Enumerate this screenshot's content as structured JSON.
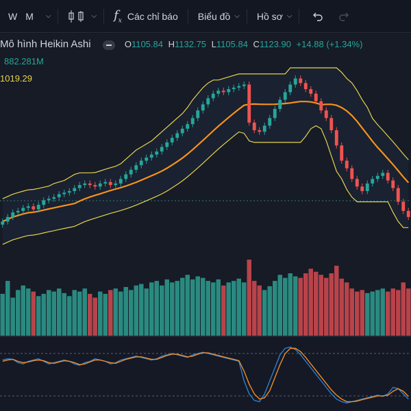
{
  "toolbar": {
    "interval_w": "W",
    "interval_m": "M",
    "indicators_label": "Các chỉ báo",
    "chart_menu_label": "Biểu đồ",
    "profile_menu_label": "Hồ sơ",
    "icons": [
      "chevron-down-icon",
      "candles-icon",
      "function-fx-icon",
      "undo-icon",
      "redo-icon"
    ]
  },
  "legend": {
    "series_name": "Mô hình Heikin Ashi",
    "o_key": "O",
    "o_val": "1105.84",
    "h_key": "H",
    "h_val": "1132.75",
    "l_key": "L",
    "l_val": "1105.84",
    "c_key": "C",
    "c_val": "1123.90",
    "change": "+14.88 (+1.34%)",
    "volume_value": "882.281M",
    "ma_value": "1019.29"
  },
  "colors": {
    "background": "#161b26",
    "up": "#26a69a",
    "down": "#ef5350",
    "ma_line": "#f7931a",
    "bands": "#e8d44d",
    "stoch_k": "#2f7fd1",
    "stoch_d": "#f28c28"
  },
  "chart_data": {
    "type": "candlestick",
    "heikin_ashi_close": [
      1010,
      1016,
      1022,
      1024,
      1028,
      1030,
      1026,
      1032,
      1038,
      1040,
      1042,
      1046,
      1048,
      1050,
      1054,
      1058,
      1060,
      1058,
      1056,
      1060,
      1062,
      1058,
      1060,
      1066,
      1072,
      1078,
      1084,
      1090,
      1094,
      1098,
      1102,
      1108,
      1114,
      1120,
      1126,
      1132,
      1138,
      1146,
      1156,
      1164,
      1172,
      1178,
      1182,
      1180,
      1184,
      1186,
      1188,
      1190,
      1140,
      1130,
      1128,
      1136,
      1146,
      1158,
      1170,
      1180,
      1190,
      1198,
      1192,
      1184,
      1178,
      1168,
      1156,
      1146,
      1130,
      1110,
      1090,
      1080,
      1066,
      1056,
      1050,
      1060,
      1066,
      1070,
      1074,
      1064,
      1054,
      1036,
      1024,
      1016
    ],
    "volume_relative": [
      0.55,
      0.72,
      0.5,
      0.6,
      0.66,
      0.62,
      0.58,
      0.52,
      0.55,
      0.6,
      0.58,
      0.62,
      0.56,
      0.52,
      0.6,
      0.58,
      0.62,
      0.55,
      0.5,
      0.58,
      0.55,
      0.6,
      0.62,
      0.58,
      0.64,
      0.6,
      0.66,
      0.68,
      0.62,
      0.7,
      0.72,
      0.66,
      0.74,
      0.7,
      0.72,
      0.76,
      0.8,
      0.74,
      0.78,
      0.76,
      0.72,
      0.7,
      0.74,
      0.66,
      0.7,
      0.72,
      0.75,
      0.7,
      1.0,
      0.72,
      0.66,
      0.6,
      0.65,
      0.72,
      0.8,
      0.76,
      0.82,
      0.78,
      0.76,
      0.82,
      0.88,
      0.84,
      0.8,
      0.76,
      0.82,
      0.92,
      0.75,
      0.7,
      0.62,
      0.58,
      0.6,
      0.56,
      0.58,
      0.6,
      0.62,
      0.58,
      0.62,
      0.6,
      0.7,
      0.62
    ],
    "stoch_k": [
      72,
      74,
      73,
      68,
      66,
      70,
      72,
      74,
      70,
      66,
      68,
      70,
      72,
      70,
      66,
      64,
      68,
      70,
      74,
      72,
      70,
      66,
      68,
      72,
      74,
      76,
      78,
      76,
      74,
      72,
      74,
      78,
      80,
      82,
      80,
      78,
      76,
      80,
      82,
      84,
      82,
      80,
      78,
      76,
      74,
      72,
      70,
      40,
      20,
      10,
      8,
      20,
      40,
      60,
      80,
      90,
      92,
      88,
      80,
      70,
      60,
      50,
      40,
      30,
      20,
      12,
      8,
      6,
      8,
      10,
      12,
      14,
      16,
      18,
      16,
      20,
      30,
      28,
      20,
      12
    ],
    "stoch_d": [
      70,
      72,
      73,
      70,
      68,
      69,
      71,
      72,
      71,
      68,
      67,
      69,
      71,
      70,
      68,
      65,
      66,
      69,
      72,
      72,
      70,
      68,
      67,
      70,
      73,
      75,
      77,
      77,
      75,
      73,
      73,
      76,
      79,
      81,
      81,
      79,
      77,
      78,
      81,
      83,
      83,
      81,
      79,
      77,
      75,
      73,
      71,
      55,
      35,
      20,
      12,
      14,
      25,
      45,
      65,
      82,
      90,
      90,
      85,
      76,
      66,
      56,
      46,
      36,
      26,
      18,
      12,
      8,
      8,
      9,
      11,
      13,
      15,
      17,
      17,
      18,
      24,
      28,
      24,
      16
    ]
  }
}
